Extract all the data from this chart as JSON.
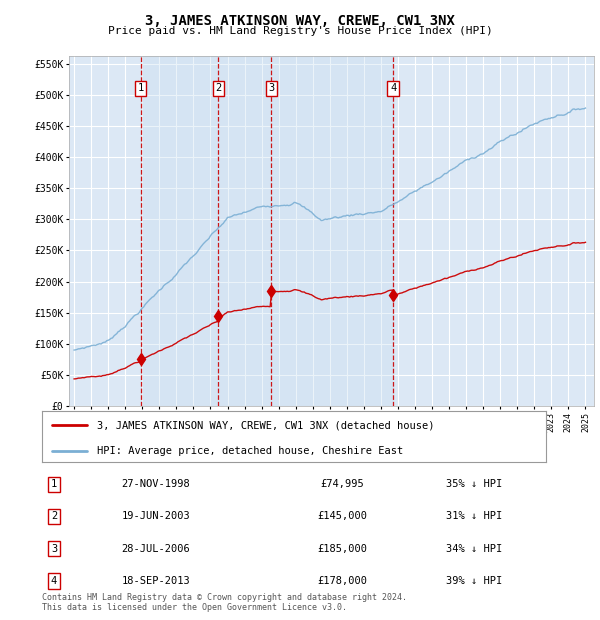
{
  "title": "3, JAMES ATKINSON WAY, CREWE, CW1 3NX",
  "subtitle": "Price paid vs. HM Land Registry's House Price Index (HPI)",
  "ylim": [
    0,
    562500
  ],
  "yticks": [
    0,
    50000,
    100000,
    150000,
    200000,
    250000,
    300000,
    350000,
    400000,
    450000,
    500000,
    550000
  ],
  "ytick_labels": [
    "£0",
    "£50K",
    "£100K",
    "£150K",
    "£200K",
    "£250K",
    "£300K",
    "£350K",
    "£400K",
    "£450K",
    "£500K",
    "£550K"
  ],
  "plot_bg_color": "#dce8f5",
  "grid_color": "#ffffff",
  "sale_dates_num": [
    1998.9,
    2003.47,
    2006.57,
    2013.72
  ],
  "sale_prices": [
    74995,
    145000,
    185000,
    178000
  ],
  "sale_labels": [
    "1",
    "2",
    "3",
    "4"
  ],
  "sale_date_strs": [
    "27-NOV-1998",
    "19-JUN-2003",
    "28-JUL-2006",
    "18-SEP-2013"
  ],
  "sale_price_strs": [
    "£74,995",
    "£145,000",
    "£185,000",
    "£178,000"
  ],
  "sale_hpi_strs": [
    "35% ↓ HPI",
    "31% ↓ HPI",
    "34% ↓ HPI",
    "39% ↓ HPI"
  ],
  "red_line_color": "#cc0000",
  "blue_line_color": "#7bafd4",
  "marker_box_color": "#cc0000",
  "vline_color": "#cc0000",
  "shade_color": "#c8ddf0",
  "legend_label_red": "3, JAMES ATKINSON WAY, CREWE, CW1 3NX (detached house)",
  "legend_label_blue": "HPI: Average price, detached house, Cheshire East",
  "footer_text": "Contains HM Land Registry data © Crown copyright and database right 2024.\nThis data is licensed under the Open Government Licence v3.0."
}
